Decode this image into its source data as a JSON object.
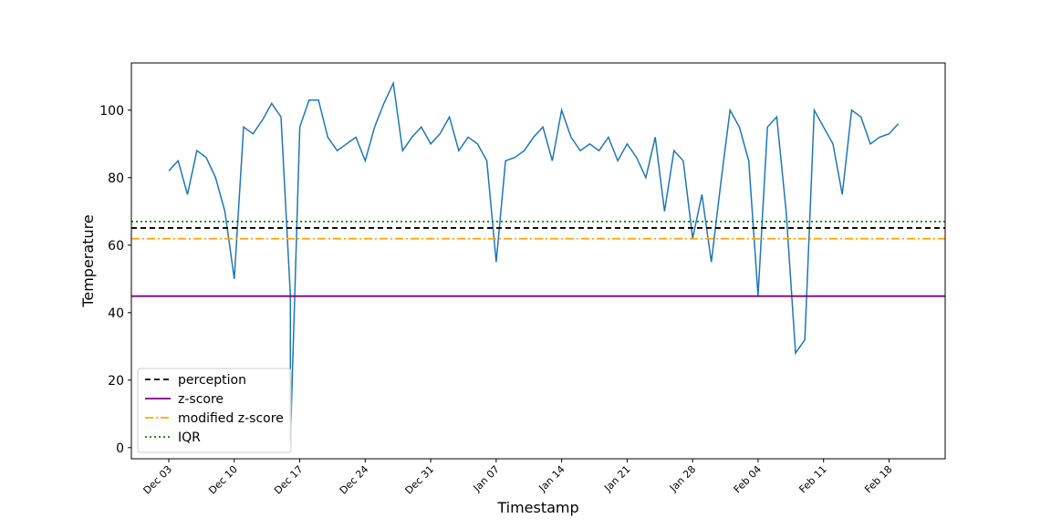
{
  "chart_data": {
    "type": "line",
    "x_label": "Timestamp",
    "y_label": "Temperature",
    "x": [
      "Dec 03",
      "Dec 04",
      "Dec 05",
      "Dec 06",
      "Dec 07",
      "Dec 08",
      "Dec 09",
      "Dec 10",
      "Dec 11",
      "Dec 12",
      "Dec 13",
      "Dec 14",
      "Dec 15",
      "Dec 16",
      "Dec 16",
      "Dec 17",
      "Dec 18",
      "Dec 19",
      "Dec 20",
      "Dec 21",
      "Dec 22",
      "Dec 23",
      "Dec 24",
      "Dec 25",
      "Dec 26",
      "Dec 27",
      "Dec 28",
      "Dec 29",
      "Dec 30",
      "Dec 31",
      "Jan 01",
      "Jan 02",
      "Jan 03",
      "Jan 04",
      "Jan 05",
      "Jan 06",
      "Jan 07",
      "Jan 08",
      "Jan 09",
      "Jan 10",
      "Jan 11",
      "Jan 12",
      "Jan 13",
      "Jan 14",
      "Jan 15",
      "Jan 16",
      "Jan 17",
      "Jan 18",
      "Jan 19",
      "Jan 20",
      "Jan 21",
      "Jan 22",
      "Jan 23",
      "Jan 24",
      "Jan 25",
      "Jan 26",
      "Jan 27",
      "Jan 28",
      "Jan 29",
      "Jan 30",
      "Jan 31",
      "Feb 01",
      "Feb 02",
      "Feb 03",
      "Feb 04",
      "Feb 05",
      "Feb 06",
      "Feb 07",
      "Feb 08",
      "Feb 09",
      "Feb 10",
      "Feb 11",
      "Feb 12",
      "Feb 13",
      "Feb 14",
      "Feb 15",
      "Feb 16",
      "Feb 17",
      "Feb 18",
      "Feb 19"
    ],
    "series": [
      {
        "color": "#1f77b4",
        "values": [
          82,
          85,
          75,
          88,
          86,
          80,
          70,
          50,
          95,
          93,
          97,
          102,
          98,
          45,
          2,
          95,
          103,
          103,
          92,
          88,
          90,
          92,
          85,
          95,
          102,
          108,
          88,
          92,
          95,
          90,
          93,
          98,
          88,
          92,
          90,
          85,
          55,
          85,
          86,
          88,
          92,
          95,
          85,
          100,
          92,
          88,
          90,
          88,
          92,
          85,
          90,
          86,
          80,
          92,
          70,
          88,
          85,
          62,
          75,
          55,
          78,
          100,
          95,
          85,
          45,
          95,
          98,
          70,
          28,
          32,
          100,
          95,
          90,
          75,
          100,
          98,
          90,
          92,
          93,
          96
        ]
      }
    ],
    "hlines": [
      {
        "name": "perception",
        "value": 65.1,
        "color": "#000000",
        "style": "dashed"
      },
      {
        "name": "z-score",
        "value": 44.9,
        "color": "#800080",
        "style": "solid"
      },
      {
        "name": "modified z-score",
        "value": 61.9,
        "color": "#ffa500",
        "style": "dashdot"
      },
      {
        "name": "IQR",
        "value": 67,
        "color": "#008000",
        "style": "dotted"
      }
    ],
    "xlim": [
      "Nov 29",
      "Feb 24"
    ],
    "xticks": [
      "Dec 03",
      "Dec 10",
      "Dec 17",
      "Dec 24",
      "Dec 31",
      "Jan 07",
      "Jan 14",
      "Jan 21",
      "Jan 28",
      "Feb 04",
      "Feb 11",
      "Feb 18"
    ],
    "ylim": [
      -3.3,
      114
    ],
    "yticks": [
      0,
      20,
      40,
      60,
      80,
      100
    ],
    "grid": false,
    "legend": "lower left"
  }
}
